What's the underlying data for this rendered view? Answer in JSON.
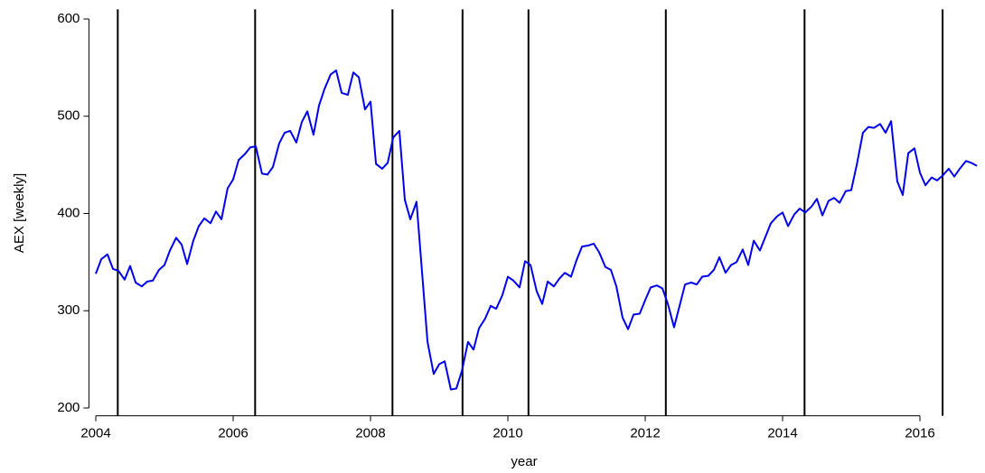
{
  "chart_data": {
    "type": "line",
    "x_label": "year",
    "y_label": "AEX [weekly]",
    "x": [
      2004.0,
      2004.08,
      2004.17,
      2004.25,
      2004.33,
      2004.42,
      2004.5,
      2004.58,
      2004.67,
      2004.75,
      2004.83,
      2004.92,
      2005.0,
      2005.08,
      2005.17,
      2005.25,
      2005.33,
      2005.42,
      2005.5,
      2005.58,
      2005.67,
      2005.75,
      2005.83,
      2005.92,
      2006.0,
      2006.08,
      2006.17,
      2006.25,
      2006.33,
      2006.42,
      2006.5,
      2006.58,
      2006.67,
      2006.75,
      2006.83,
      2006.92,
      2007.0,
      2007.08,
      2007.17,
      2007.25,
      2007.33,
      2007.42,
      2007.5,
      2007.58,
      2007.67,
      2007.75,
      2007.83,
      2007.92,
      2008.0,
      2008.08,
      2008.17,
      2008.25,
      2008.33,
      2008.42,
      2008.5,
      2008.58,
      2008.67,
      2008.75,
      2008.83,
      2008.92,
      2009.0,
      2009.08,
      2009.17,
      2009.25,
      2009.33,
      2009.42,
      2009.5,
      2009.58,
      2009.67,
      2009.75,
      2009.83,
      2009.92,
      2010.0,
      2010.08,
      2010.17,
      2010.25,
      2010.33,
      2010.42,
      2010.5,
      2010.58,
      2010.67,
      2010.75,
      2010.83,
      2010.92,
      2011.0,
      2011.08,
      2011.17,
      2011.25,
      2011.33,
      2011.42,
      2011.5,
      2011.58,
      2011.67,
      2011.75,
      2011.83,
      2011.92,
      2012.0,
      2012.08,
      2012.17,
      2012.25,
      2012.33,
      2012.42,
      2012.5,
      2012.58,
      2012.67,
      2012.75,
      2012.83,
      2012.92,
      2013.0,
      2013.08,
      2013.17,
      2013.25,
      2013.33,
      2013.42,
      2013.5,
      2013.58,
      2013.67,
      2013.75,
      2013.83,
      2013.92,
      2014.0,
      2014.08,
      2014.17,
      2014.25,
      2014.33,
      2014.42,
      2014.5,
      2014.58,
      2014.67,
      2014.75,
      2014.83,
      2014.92,
      2015.0,
      2015.08,
      2015.17,
      2015.25,
      2015.33,
      2015.42,
      2015.5,
      2015.58,
      2015.67,
      2015.75,
      2015.83,
      2015.92,
      2016.0,
      2016.08,
      2016.17,
      2016.25,
      2016.33,
      2016.42,
      2016.5,
      2016.58,
      2016.67,
      2016.75,
      2016.83
    ],
    "series": [
      {
        "color": "#0000ee",
        "values": [
          338,
          353,
          358,
          343,
          341,
          332,
          346,
          329,
          325,
          330,
          331,
          342,
          347,
          362,
          375,
          368,
          348,
          372,
          387,
          395,
          390,
          402,
          394,
          426,
          435,
          455,
          461,
          468,
          469,
          441,
          440,
          448,
          472,
          483,
          485,
          473,
          494,
          505,
          481,
          511,
          528,
          543,
          547,
          524,
          522,
          545,
          540,
          507,
          515,
          451,
          446,
          452,
          478,
          485,
          414,
          394,
          412,
          340,
          268,
          235,
          245,
          248,
          219,
          220,
          238,
          268,
          260,
          282,
          292,
          305,
          302,
          316,
          335,
          331,
          324,
          351,
          347,
          320,
          307,
          330,
          325,
          333,
          339,
          335,
          352,
          366,
          367,
          369,
          360,
          345,
          342,
          325,
          293,
          281,
          296,
          297,
          311,
          324,
          326,
          323,
          307,
          283,
          305,
          327,
          329,
          327,
          335,
          336,
          342,
          355,
          339,
          347,
          350,
          363,
          347,
          372,
          362,
          376,
          390,
          397,
          401,
          387,
          399,
          405,
          401,
          407,
          415,
          398,
          413,
          416,
          411,
          423,
          424,
          450,
          483,
          489,
          488,
          492,
          483,
          495,
          433,
          419,
          462,
          467,
          442,
          429,
          437,
          434,
          439,
          446,
          438,
          446,
          454,
          452,
          449
        ]
      }
    ],
    "vlines": [
      2004.32,
      2006.32,
      2008.32,
      2009.34,
      2010.3,
      2012.3,
      2014.32,
      2016.33
    ],
    "vline_color": "#000000",
    "xlim": [
      2003.9,
      2016.9
    ],
    "xticks": [
      2004,
      2006,
      2008,
      2010,
      2012,
      2014,
      2016
    ],
    "ylim": [
      192,
      608
    ],
    "yticks": [
      200,
      300,
      400,
      500,
      600
    ],
    "grid": false
  }
}
